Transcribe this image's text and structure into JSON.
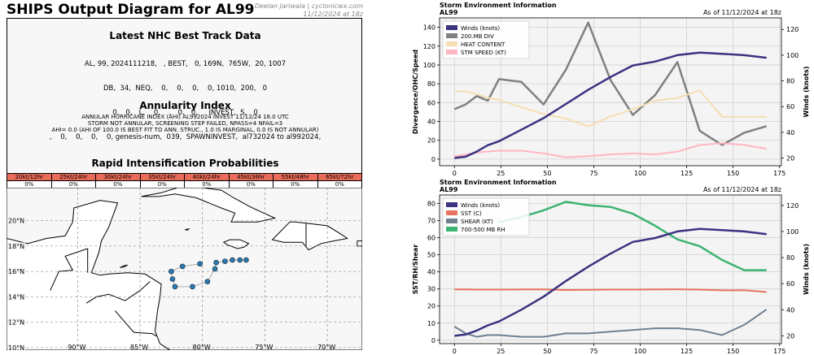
{
  "page": {
    "title": "SHIPS Output Diagram for AL99",
    "credit_line1": "Deelan Jariwala | cyclonicwx.com",
    "credit_line2": "11/12/2024 at 18z"
  },
  "best_track": {
    "title": "Latest NHC Best Track Data",
    "lines": [
      "AL, 99, 2024111218,   , BEST,   0, 169N,  765W,  20, 1007",
      "DB,  34,  NEQ,    0,    0,    0,    0, 1010,  200,   0",
      "0,   0,   L,    0,    ,   0,   0,     INVEST,  S,   0",
      ",    0,    0,    0,    0, genesis-num,  039,  SPAWNINVEST,  al732024 to al992024,"
    ]
  },
  "annularity": {
    "title": "Annularity Index",
    "lines": [
      "ANNULAR HURRICANE INDEX (AHI) AL992024 INVEST 11/12/24 18.0 UTC",
      "STORM NOT ANNULAR, SCREENING STEP FAILED, NPASS=4 NFAIL=3",
      "AHI= 0.0 (AHI OF 100.0 IS BEST FIT TO ANN. STRUC., 1.0 IS MARGINAL, 0.0 IS NOT ANNULAR)"
    ]
  },
  "rapid_intensification": {
    "title": "Rapid Intensification Probabilities",
    "headers": [
      "20kt/12hr",
      "25kt/24hr",
      "30kt/24hr",
      "35kt/24hr",
      "40kt/24hr",
      "45kt/36hr",
      "55kt/48hr",
      "65kt/72hr"
    ],
    "values": [
      "0%",
      "0%",
      "0%",
      "0%",
      "0%",
      "0%",
      "0%",
      "0%"
    ]
  },
  "map": {
    "lat_labels": [
      "10°N",
      "12°N",
      "14°N",
      "16°N",
      "18°N",
      "20°N"
    ],
    "lat_values": [
      10,
      12,
      14,
      16,
      18,
      20
    ],
    "lon_labels": [
      "90°W",
      "85°W",
      "80°W",
      "75°W",
      "70°W"
    ],
    "lon_values": [
      -90,
      -85,
      -80,
      -75,
      -70
    ],
    "track": [
      {
        "lon": -76.5,
        "lat": 16.9
      },
      {
        "lon": -77.0,
        "lat": 16.9
      },
      {
        "lon": -77.6,
        "lat": 16.9
      },
      {
        "lon": -78.2,
        "lat": 16.8
      },
      {
        "lon": -78.9,
        "lat": 16.7
      },
      {
        "lon": -79.0,
        "lat": 16.2
      },
      {
        "lon": -79.6,
        "lat": 15.2
      },
      {
        "lon": -80.8,
        "lat": 14.8
      },
      {
        "lon": -82.2,
        "lat": 14.8
      },
      {
        "lon": -82.4,
        "lat": 15.4
      },
      {
        "lon": -82.5,
        "lat": 16.0
      },
      {
        "lon": -81.6,
        "lat": 16.4
      },
      {
        "lon": -80.2,
        "lat": 16.6
      }
    ],
    "colors": {
      "land": "#ffffff",
      "water": "#f7f7f7",
      "track": "#2a7ab0"
    }
  },
  "chart_data": [
    {
      "type": "line",
      "title": "Storm Environment Information",
      "subtitle": "AL99",
      "date_label": "As of 11/12/2024 at 18z",
      "ylabel": "Divergence/OHC/Speed",
      "y2label": "Winds (knots)",
      "xlim": [
        -8,
        176
      ],
      "ylim": [
        -7,
        150
      ],
      "y2lim": [
        14,
        129
      ],
      "xticks": [
        0,
        25,
        50,
        75,
        100,
        125,
        150,
        175
      ],
      "yticks": [
        0,
        20,
        40,
        60,
        80,
        100,
        120,
        140
      ],
      "y2ticks": [
        20,
        40,
        60,
        80,
        100,
        120
      ],
      "legend_position": "top-left",
      "grid": true,
      "x": [
        0,
        6,
        12,
        18,
        24,
        36,
        48,
        60,
        72,
        84,
        96,
        108,
        120,
        132,
        144,
        156,
        168
      ],
      "series": [
        {
          "name": "Winds (knots)",
          "axis": "right",
          "color": "#3b3280",
          "width": 2.5,
          "values": [
            20,
            21,
            25,
            30,
            33,
            42,
            51,
            62,
            73,
            83,
            92,
            95,
            100,
            102,
            101,
            100,
            98
          ]
        },
        {
          "name": "200.MB DIV",
          "axis": "left",
          "color": "#808080",
          "width": 2.5,
          "values": [
            53,
            58,
            67,
            62,
            85,
            82,
            58,
            95,
            145,
            84,
            47,
            68,
            103,
            30,
            15,
            28,
            35
          ]
        },
        {
          "name": "HEAT CONTENT",
          "axis": "left",
          "color": "#f5deb3",
          "width": 2.0,
          "values": [
            72,
            72,
            69,
            65,
            63,
            55,
            48,
            43,
            35,
            45,
            53,
            62,
            65,
            73,
            45,
            45,
            45
          ]
        },
        {
          "name": "STM SPEED (KT)",
          "axis": "left",
          "color": "#ffb6c1",
          "width": 2.0,
          "values": [
            3,
            5,
            7,
            8,
            9,
            9,
            6,
            2,
            3,
            5,
            6,
            5,
            8,
            15,
            17,
            15,
            11
          ]
        }
      ]
    },
    {
      "type": "line",
      "title": "Storm Environment Information",
      "subtitle": "AL99",
      "date_label": "As of 11/12/2024 at 18z",
      "ylabel": "SST/RH/Shear",
      "y2label": "Winds (knots)",
      "xlim": [
        -8,
        176
      ],
      "ylim": [
        -2,
        85
      ],
      "y2lim": [
        14,
        128
      ],
      "xticks": [
        0,
        25,
        50,
        75,
        100,
        125,
        150,
        175
      ],
      "yticks": [
        0,
        10,
        20,
        30,
        40,
        50,
        60,
        70,
        80
      ],
      "y2ticks": [
        20,
        40,
        60,
        80,
        100,
        120
      ],
      "legend_position": "top-left",
      "grid": true,
      "x": [
        0,
        6,
        12,
        18,
        24,
        36,
        48,
        60,
        72,
        84,
        96,
        108,
        120,
        132,
        144,
        156,
        168
      ],
      "series": [
        {
          "name": "Winds (knots)",
          "axis": "right",
          "color": "#3b3280",
          "width": 2.5,
          "values": [
            20,
            21,
            24,
            28,
            31,
            40,
            50,
            62,
            73,
            83,
            92,
            95,
            100,
            102,
            101,
            100,
            98
          ]
        },
        {
          "name": "SST (C)",
          "axis": "left",
          "color": "#e8735f",
          "width": 2.0,
          "values": [
            29.7,
            29.7,
            29.6,
            29.6,
            29.6,
            29.7,
            29.7,
            29.4,
            29.5,
            29.6,
            29.6,
            29.7,
            29.8,
            29.6,
            29.2,
            29.3,
            28.2
          ]
        },
        {
          "name": "SHEAR (KT)",
          "axis": "left",
          "color": "#708090",
          "width": 2.0,
          "values": [
            8,
            4,
            2,
            3,
            3,
            2,
            2,
            4,
            4,
            5,
            6,
            7,
            7,
            6,
            3,
            9,
            18
          ]
        },
        {
          "name": "700-500 MB RH",
          "axis": "left",
          "color": "#3cb371",
          "width": 2.5,
          "values": [
            null,
            null,
            null,
            null,
            69,
            72,
            76,
            81,
            79,
            78,
            74,
            67,
            59,
            55,
            47,
            41,
            41
          ]
        }
      ]
    }
  ]
}
